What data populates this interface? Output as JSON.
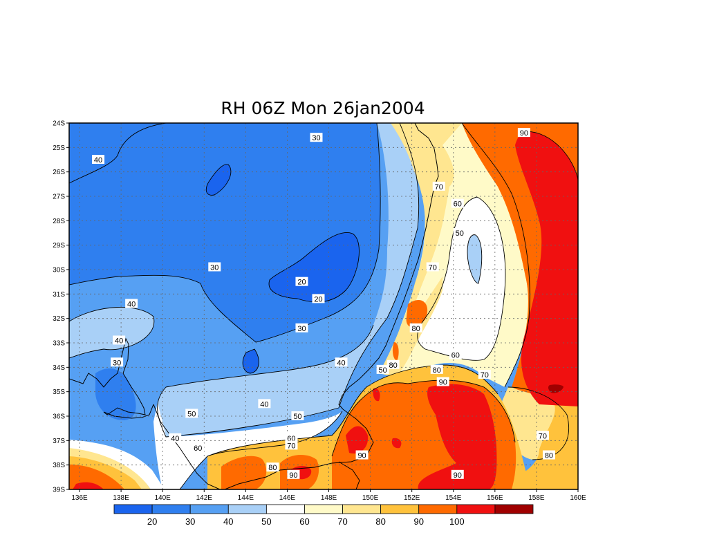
{
  "title": "RH 06Z Mon 26jan2004",
  "lat_labels": [
    "24S",
    "25S",
    "26S",
    "27S",
    "28S",
    "29S",
    "30S",
    "31S",
    "32S",
    "33S",
    "34S",
    "35S",
    "36S",
    "37S",
    "38S",
    "39S"
  ],
  "lon_labels": [
    "136E",
    "138E",
    "140E",
    "142E",
    "144E",
    "146E",
    "148E",
    "150E",
    "152E",
    "154E",
    "156E",
    "158E",
    "160E"
  ],
  "colorbar": {
    "colors": [
      "#1a64ee",
      "#2f7fef",
      "#56a0f3",
      "#a9d0f7",
      "#ffffff",
      "#fffac8",
      "#ffe690",
      "#ffc23c",
      "#ff6a00",
      "#f01010",
      "#a00000"
    ],
    "labels": [
      "20",
      "30",
      "40",
      "50",
      "60",
      "70",
      "80",
      "90",
      "100"
    ]
  },
  "contour_labels": [
    {
      "text": "30",
      "lon": 147.4,
      "lat": -24.6
    },
    {
      "text": "40",
      "lon": 136.9,
      "lat": -25.5
    },
    {
      "text": "90",
      "lon": 157.4,
      "lat": -24.4
    },
    {
      "text": "70",
      "lon": 153.3,
      "lat": -26.6
    },
    {
      "text": "60",
      "lon": 154.2,
      "lat": -27.3
    },
    {
      "text": "50",
      "lon": 154.3,
      "lat": -28.5
    },
    {
      "text": "30",
      "lon": 142.5,
      "lat": -29.9
    },
    {
      "text": "70",
      "lon": 153.0,
      "lat": -29.9
    },
    {
      "text": "20",
      "lon": 146.7,
      "lat": -30.5
    },
    {
      "text": "20",
      "lon": 147.5,
      "lat": -31.2
    },
    {
      "text": "40",
      "lon": 138.5,
      "lat": -31.4
    },
    {
      "text": "80",
      "lon": 152.2,
      "lat": -32.4
    },
    {
      "text": "30",
      "lon": 146.7,
      "lat": -32.4
    },
    {
      "text": "40",
      "lon": 137.9,
      "lat": -32.9
    },
    {
      "text": "30",
      "lon": 137.8,
      "lat": -33.8
    },
    {
      "text": "40",
      "lon": 148.6,
      "lat": -33.8
    },
    {
      "text": "60",
      "lon": 154.1,
      "lat": -33.5
    },
    {
      "text": "80",
      "lon": 151.1,
      "lat": -33.9
    },
    {
      "text": "50",
      "lon": 150.6,
      "lat": -34.1
    },
    {
      "text": "80",
      "lon": 153.2,
      "lat": -34.1
    },
    {
      "text": "70",
      "lon": 155.5,
      "lat": -34.3
    },
    {
      "text": "90",
      "lon": 153.5,
      "lat": -34.6
    },
    {
      "text": "40",
      "lon": 144.9,
      "lat": -35.5
    },
    {
      "text": "50",
      "lon": 141.4,
      "lat": -35.9
    },
    {
      "text": "50",
      "lon": 146.5,
      "lat": -36.0
    },
    {
      "text": "40",
      "lon": 140.6,
      "lat": -36.9
    },
    {
      "text": "60",
      "lon": 146.2,
      "lat": -36.9
    },
    {
      "text": "70",
      "lon": 146.2,
      "lat": -37.2
    },
    {
      "text": "60",
      "lon": 141.7,
      "lat": -37.3
    },
    {
      "text": "70",
      "lon": 158.3,
      "lat": -36.8
    },
    {
      "text": "90",
      "lon": 149.6,
      "lat": -37.6
    },
    {
      "text": "80",
      "lon": 158.6,
      "lat": -37.6
    },
    {
      "text": "80",
      "lon": 145.3,
      "lat": -38.1
    },
    {
      "text": "90",
      "lon": 146.3,
      "lat": -38.4
    },
    {
      "text": "90",
      "lon": 154.2,
      "lat": -38.4
    }
  ]
}
